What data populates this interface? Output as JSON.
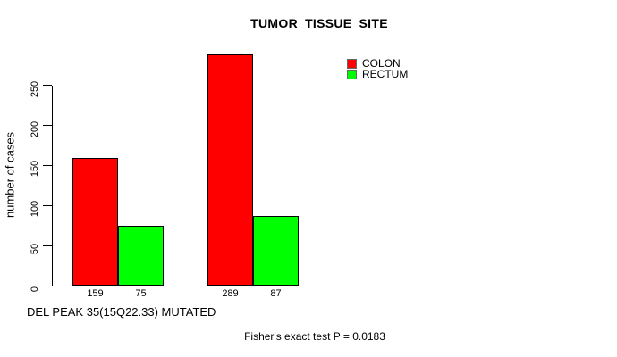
{
  "window": {
    "background": "#ffffff"
  },
  "chart_data": {
    "type": "bar",
    "title": "TUMOR_TISSUE_SITE",
    "xlabel": "DEL PEAK 35(15Q22.33) MUTATED",
    "ylabel": "number of cases",
    "y_ticks": [
      0,
      50,
      100,
      150,
      200,
      250
    ],
    "ylim": [
      0,
      290
    ],
    "grid": false,
    "legend_position": "top-right-inside",
    "groups": 2,
    "series": [
      {
        "name": "COLON",
        "color": "#ff0000",
        "values": [
          159,
          289
        ]
      },
      {
        "name": "RECTUM",
        "color": "#00ff00",
        "values": [
          75,
          87
        ]
      }
    ],
    "legend": [
      {
        "label": "COLON",
        "color": "#ff0000"
      },
      {
        "label": "RECTUM",
        "color": "#00ff00"
      }
    ],
    "bar_value_labels": [
      "159",
      "75",
      "289",
      "87"
    ],
    "annotation": "Fisher's exact test P = 0.0183",
    "bar_border_color": "#000000",
    "axis_color": "#000000",
    "text_color": "#000000"
  }
}
